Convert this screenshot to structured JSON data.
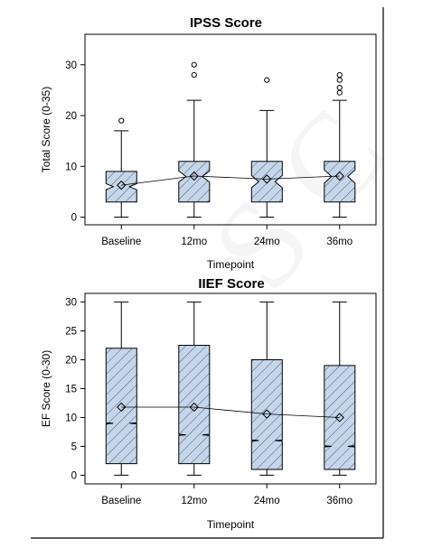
{
  "chart_data": [
    {
      "type": "box",
      "title": "IPSS Score",
      "xlabel": "Timepoint",
      "ylabel": "Total Score (0-35)",
      "ylim": [
        -1.5,
        36
      ],
      "yticks": [
        0,
        10,
        20,
        30
      ],
      "categories": [
        "Baseline",
        "12mo",
        "24mo",
        "36mo"
      ],
      "notched": true,
      "grid": false,
      "fill_color": "#c5d6ea",
      "boxes": [
        {
          "category": "Baseline",
          "whisker_low": 0,
          "q1": 3,
          "median": 6,
          "q3": 9,
          "whisker_high": 17,
          "notch_low": 5.4,
          "notch_high": 6.6,
          "mean": 6.3,
          "outliers": [
            19
          ]
        },
        {
          "category": "12mo",
          "whisker_low": 0,
          "q1": 3,
          "median": 8,
          "q3": 11,
          "whisker_high": 23,
          "notch_low": 6.9,
          "notch_high": 9.1,
          "mean": 8.1,
          "outliers": [
            28,
            30
          ]
        },
        {
          "category": "24mo",
          "whisker_low": 0,
          "q1": 3,
          "median": 7,
          "q3": 11,
          "whisker_high": 21,
          "notch_low": 5.8,
          "notch_high": 8.2,
          "mean": 7.5,
          "outliers": [
            27
          ]
        },
        {
          "category": "36mo",
          "whisker_low": 0,
          "q1": 3,
          "median": 8,
          "q3": 11,
          "whisker_high": 23,
          "notch_low": 6.7,
          "notch_high": 9.3,
          "mean": 8.1,
          "outliers": [
            24.5,
            25.5,
            27,
            28
          ]
        }
      ]
    },
    {
      "type": "box",
      "title": "IIEF Score",
      "xlabel": "Timepoint",
      "ylabel": "EF Score (0-30)",
      "ylim": [
        -1.5,
        31.5
      ],
      "yticks": [
        0,
        5,
        10,
        15,
        20,
        25,
        30
      ],
      "categories": [
        "Baseline",
        "12mo",
        "24mo",
        "36mo"
      ],
      "notched": true,
      "grid": false,
      "fill_color": "#c5d6ea",
      "boxes": [
        {
          "category": "Baseline",
          "whisker_low": 0,
          "q1": 2,
          "median": 9,
          "q3": 22,
          "whisker_high": 30,
          "notch_low": 8.9,
          "notch_high": 9.1,
          "mean": 11.8,
          "outliers": []
        },
        {
          "category": "12mo",
          "whisker_low": 0,
          "q1": 2,
          "median": 7,
          "q3": 22.5,
          "whisker_high": 30,
          "notch_low": 6.9,
          "notch_high": 7.1,
          "mean": 11.8,
          "outliers": []
        },
        {
          "category": "24mo",
          "whisker_low": 0,
          "q1": 1,
          "median": 6,
          "q3": 20,
          "whisker_high": 30,
          "notch_low": 5.9,
          "notch_high": 6.1,
          "mean": 10.6,
          "outliers": []
        },
        {
          "category": "36mo",
          "whisker_low": 0,
          "q1": 1,
          "median": 5,
          "q3": 19,
          "whisker_high": 30,
          "notch_low": 4.9,
          "notch_high": 5.1,
          "mean": 10,
          "outliers": []
        }
      ]
    }
  ]
}
